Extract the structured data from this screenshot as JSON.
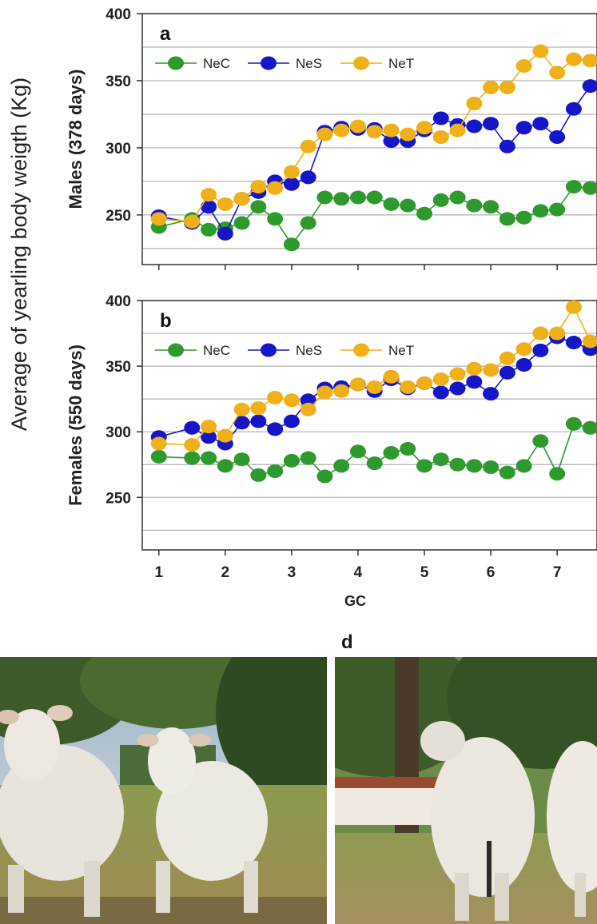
{
  "y_axis_title": "Average of yearling body weigth (Kg)",
  "colors": {
    "NeC": "#2e9a2e",
    "NeS": "#1616c8",
    "NeT": "#f0b019"
  },
  "chart_data": [
    {
      "type": "line",
      "panel_label": "a",
      "ylabel": "Males (378 days)",
      "xlabel": "",
      "xlim": [
        0.75,
        7.6
      ],
      "ylim": [
        213,
        400
      ],
      "yticks": [
        250,
        300,
        350,
        400
      ],
      "xticks": [
        1,
        2,
        3,
        4,
        5,
        6,
        7
      ],
      "show_x_tick_labels": false,
      "grid": "horizontal",
      "legend": {
        "placement": "top-left",
        "entries": [
          "NeC",
          "NeS",
          "NeT"
        ]
      },
      "x": [
        1,
        1.5,
        1.75,
        2,
        2.25,
        2.5,
        2.75,
        3,
        3.25,
        3.5,
        3.75,
        4,
        4.25,
        4.5,
        4.75,
        5,
        5.25,
        5.5,
        5.75,
        6,
        6.25,
        6.5,
        6.75,
        7,
        7.25,
        7.5
      ],
      "series": [
        {
          "name": "NeC",
          "values": [
            241,
            247,
            239,
            240,
            244,
            256,
            247,
            228,
            244,
            263,
            262,
            263,
            263,
            258,
            257,
            251,
            261,
            263,
            257,
            256,
            247,
            248,
            253,
            254,
            271,
            270
          ]
        },
        {
          "name": "NeS",
          "values": [
            249,
            244,
            256,
            236,
            262,
            267,
            275,
            273,
            278,
            312,
            315,
            314,
            314,
            305,
            305,
            313,
            322,
            317,
            316,
            318,
            301,
            315,
            318,
            308,
            329,
            346
          ]
        },
        {
          "name": "NeT",
          "values": [
            247,
            245,
            265,
            258,
            262,
            271,
            270,
            282,
            301,
            310,
            313,
            316,
            312,
            313,
            310,
            315,
            308,
            313,
            333,
            345,
            345,
            361,
            372,
            356,
            366,
            365
          ]
        }
      ]
    },
    {
      "type": "line",
      "panel_label": "b",
      "ylabel": "Females (550 days)",
      "xlabel": "GC",
      "xlim": [
        0.75,
        7.6
      ],
      "ylim": [
        210,
        400
      ],
      "yticks": [
        250,
        300,
        350,
        400
      ],
      "xticks": [
        1,
        2,
        3,
        4,
        5,
        6,
        7
      ],
      "show_x_tick_labels": true,
      "grid": "horizontal",
      "legend": {
        "placement": "top-left",
        "entries": [
          "NeC",
          "NeS",
          "NeT"
        ]
      },
      "x": [
        1,
        1.5,
        1.75,
        2,
        2.25,
        2.5,
        2.75,
        3,
        3.25,
        3.5,
        3.75,
        4,
        4.25,
        4.5,
        4.75,
        5,
        5.25,
        5.5,
        5.75,
        6,
        6.25,
        6.5,
        6.75,
        7,
        7.25,
        7.5
      ],
      "series": [
        {
          "name": "NeC",
          "values": [
            281,
            280,
            280,
            274,
            279,
            267,
            270,
            278,
            280,
            266,
            274,
            285,
            276,
            284,
            287,
            274,
            279,
            275,
            274,
            273,
            269,
            274,
            293,
            268,
            306,
            303
          ]
        },
        {
          "name": "NeS",
          "values": [
            296,
            303,
            296,
            291,
            307,
            308,
            302,
            308,
            324,
            333,
            334,
            336,
            331,
            340,
            333,
            337,
            330,
            333,
            338,
            329,
            345,
            351,
            362,
            372,
            368,
            363
          ]
        },
        {
          "name": "NeT",
          "values": [
            291,
            290,
            304,
            297,
            317,
            318,
            326,
            324,
            317,
            330,
            331,
            336,
            334,
            342,
            334,
            337,
            340,
            344,
            348,
            347,
            356,
            363,
            375,
            375,
            395,
            369
          ]
        }
      ]
    }
  ],
  "photos": [
    {
      "panel_label": "",
      "description_icon": "cattle-front-photo"
    },
    {
      "panel_label": "d",
      "description_icon": "cattle-rear-photo"
    }
  ]
}
